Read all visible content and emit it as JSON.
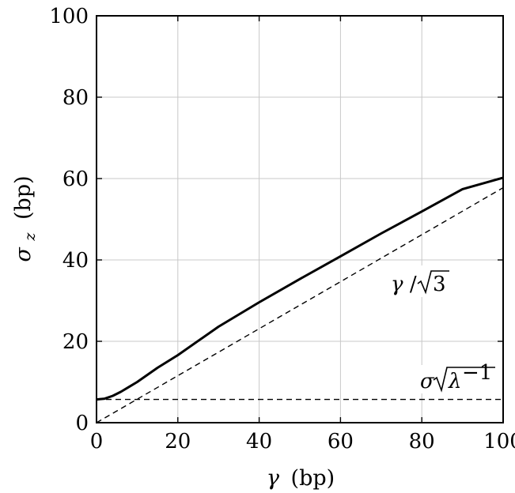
{
  "chart_data": {
    "type": "line",
    "title": "",
    "xlabel": {
      "symbol": "γ",
      "unit": "(bp)"
    },
    "ylabel": {
      "symbol": "σ",
      "subscript": "z",
      "unit": "(bp)"
    },
    "xlim": [
      0,
      100
    ],
    "ylim": [
      0,
      100
    ],
    "x_ticks": [
      "0",
      "20",
      "40",
      "60",
      "80",
      "100"
    ],
    "y_ticks": [
      "0",
      "20",
      "40",
      "60",
      "80",
      "100"
    ],
    "grid": true,
    "legend": "none",
    "series": [
      {
        "style": "solid",
        "x": [
          0,
          2,
          4,
          6,
          8,
          10,
          15,
          20,
          30,
          40,
          50,
          60,
          70,
          80,
          90,
          100
        ],
        "y": [
          5.7,
          5.9,
          6.6,
          7.6,
          8.8,
          10.0,
          13.5,
          16.6,
          23.6,
          29.6,
          35.3,
          40.9,
          46.5,
          51.9,
          57.4,
          60.2
        ]
      },
      {
        "style": "dashed",
        "x": [
          0,
          100
        ],
        "y": [
          0,
          57.74
        ]
      },
      {
        "style": "dashed",
        "x": [
          0,
          100
        ],
        "y": [
          5.7,
          5.7
        ]
      }
    ],
    "annotations": {
      "diag": {
        "gamma": "γ",
        "slash": "/",
        "three": "3",
        "at": [
          72,
          32
        ]
      },
      "flat": {
        "sigma": "σ",
        "lambda": "λ",
        "exp": "−1",
        "at": [
          80,
          9
        ]
      }
    }
  }
}
